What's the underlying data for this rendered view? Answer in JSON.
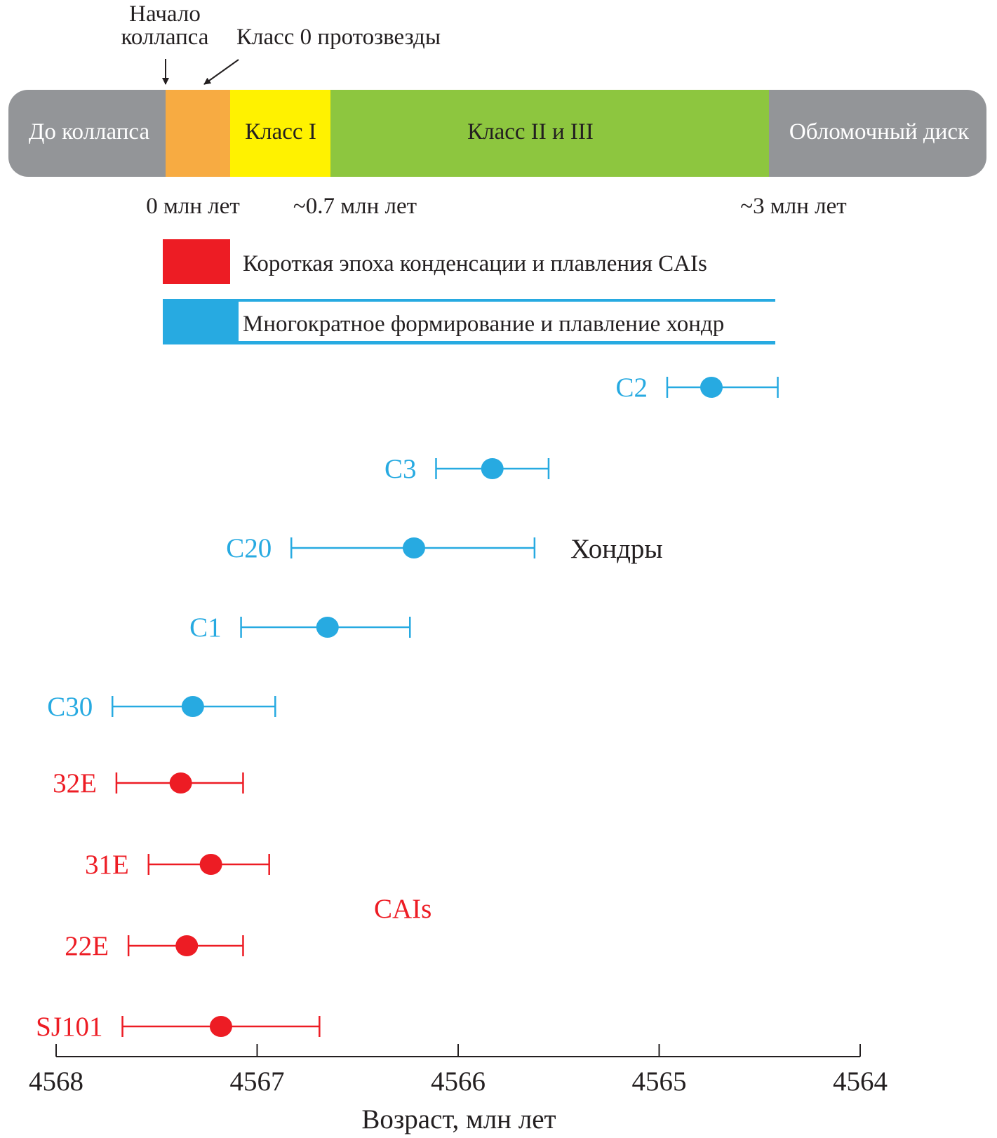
{
  "phases": {
    "labels": [
      {
        "key": "pre",
        "text": "До коллапса",
        "color": "#939598"
      },
      {
        "key": "class0",
        "text": "",
        "color": "#f7ab42"
      },
      {
        "key": "class1",
        "text": "Класс I",
        "color": "#fff200"
      },
      {
        "key": "class23",
        "text": "Класс II и III",
        "color": "#8dc63f"
      },
      {
        "key": "debris",
        "text": "Обломочный диск",
        "color": "#939598"
      }
    ],
    "collapse_label_line1": "Начало",
    "collapse_label_line2": "коллапса",
    "protostar_label": "Класс 0 протозвезды",
    "time_labels": [
      "0 млн лет",
      "~0.7 млн лет",
      "~3 млн лет"
    ]
  },
  "legend": {
    "cai_text": "Короткая эпоха конденсации и плавления CAIs",
    "cai_color": "#ed1c24",
    "chondrule_text": "Многократное формирование и плавление хондр",
    "chondrule_color": "#27aae1"
  },
  "colors": {
    "chondrules": "#27aae1",
    "cais": "#ed1c24"
  },
  "chart_data": {
    "type": "scatter",
    "title": "",
    "xlabel": "Возраст, млн лет",
    "ylabel": "",
    "xlim": [
      4568,
      4564
    ],
    "xticks": [
      4568,
      4567,
      4566,
      4565,
      4564
    ],
    "group_labels": {
      "chondrules": "Хондры",
      "cais": "CAIs"
    },
    "series": [
      {
        "name": "C2",
        "group": "chondrules",
        "age": 4564.74,
        "min": 4564.41,
        "max": 4564.96
      },
      {
        "name": "C3",
        "group": "chondrules",
        "age": 4565.83,
        "min": 4565.55,
        "max": 4566.11
      },
      {
        "name": "C20",
        "group": "chondrules",
        "age": 4566.22,
        "min": 4565.62,
        "max": 4566.83
      },
      {
        "name": "C1",
        "group": "chondrules",
        "age": 4566.65,
        "min": 4566.24,
        "max": 4567.08
      },
      {
        "name": "C30",
        "group": "chondrules",
        "age": 4567.32,
        "min": 4566.91,
        "max": 4567.72
      },
      {
        "name": "32E",
        "group": "cais",
        "age": 4567.38,
        "min": 4567.07,
        "max": 4567.7
      },
      {
        "name": "31E",
        "group": "cais",
        "age": 4567.23,
        "min": 4566.94,
        "max": 4567.54
      },
      {
        "name": "22E",
        "group": "cais",
        "age": 4567.35,
        "min": 4567.07,
        "max": 4567.64
      },
      {
        "name": "SJ101",
        "group": "cais",
        "age": 4567.18,
        "min": 4566.69,
        "max": 4567.67
      }
    ]
  }
}
